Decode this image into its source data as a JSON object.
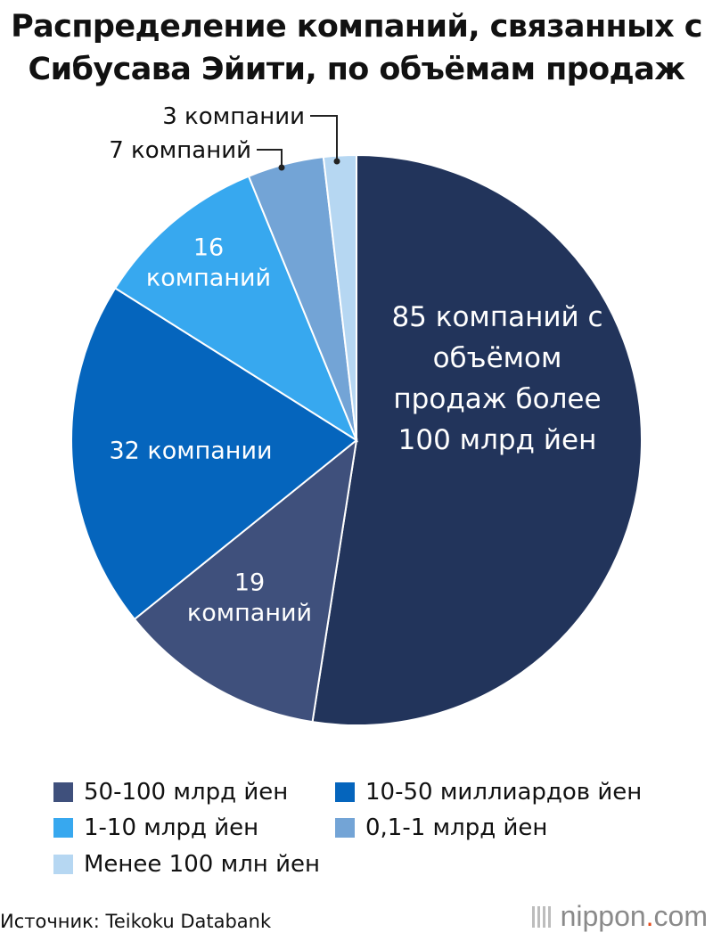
{
  "chart_data": {
    "type": "pie",
    "title_lines": [
      "Распределение компаний, связанных с",
      "Сибусава Эйити, по объёмам продаж"
    ],
    "slices": [
      {
        "category": "Более 100 млрд йен",
        "value": 85,
        "label_lines": [
          "85 компаний с",
          "объёмом",
          "продаж более",
          "100 млрд йен"
        ],
        "color": "#22345b"
      },
      {
        "category": "50-100 млрд йен",
        "value": 19,
        "label_lines": [
          "19",
          "компаний"
        ],
        "color": "#3f507c"
      },
      {
        "category": "10-50 миллиардов йен",
        "value": 32,
        "label_lines": [
          "32 компании"
        ],
        "color": "#0565bd"
      },
      {
        "category": "1-10 млрд йен",
        "value": 16,
        "label_lines": [
          "16",
          "компаний"
        ],
        "color": "#37a8ef"
      },
      {
        "category": "0,1-1 млрд йен",
        "value": 7,
        "label_lines": [
          "7 компаний"
        ],
        "color": "#73a4d6"
      },
      {
        "category": "Менее 100 млн йен",
        "value": 3,
        "label_lines": [
          "3 компании"
        ],
        "color": "#b6d7f2"
      }
    ],
    "legend": [
      {
        "label": "50-100 млрд йен",
        "color": "#3f507c"
      },
      {
        "label": "10-50 миллиардов йен",
        "color": "#0565bd"
      },
      {
        "label": "1-10 млрд йен",
        "color": "#37a8ef"
      },
      {
        "label": "0,1-1 млрд йен",
        "color": "#73a4d6"
      },
      {
        "label": "Менее 100 млн йен",
        "color": "#b6d7f2"
      }
    ]
  },
  "source": "Источник: Teikoku Databank",
  "brand": {
    "name": "nippon",
    "dot": ".",
    "suffix": "com"
  }
}
